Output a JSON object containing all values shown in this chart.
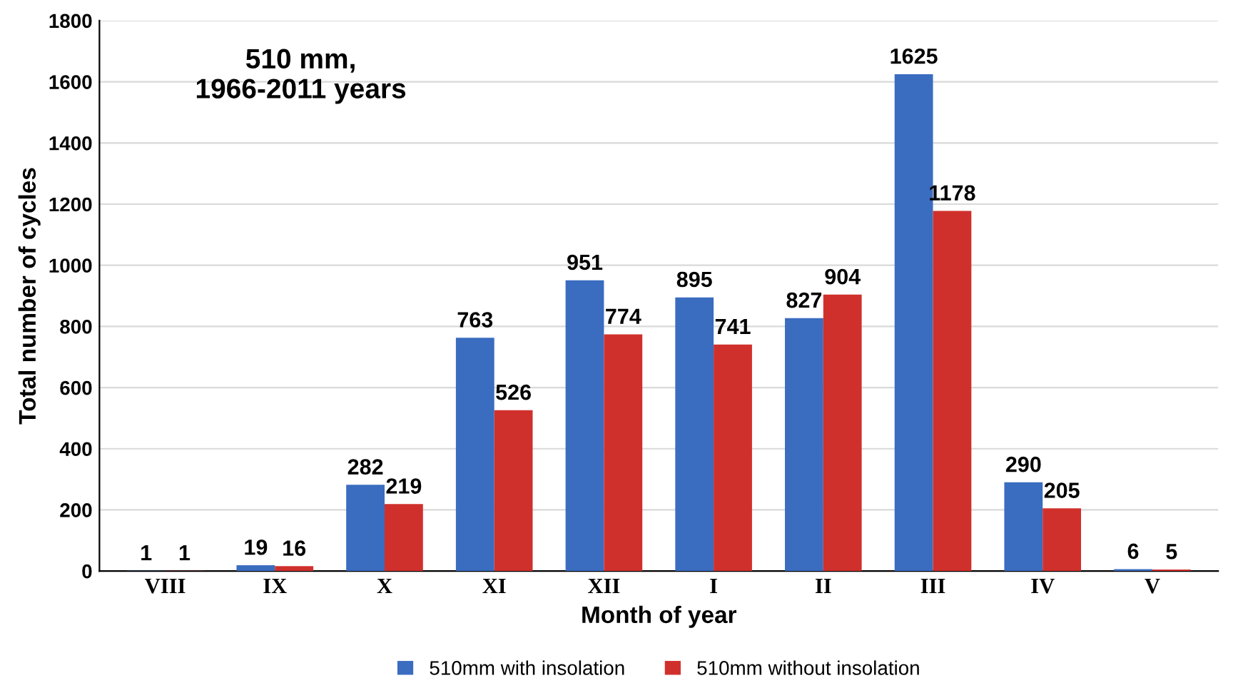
{
  "chart_data": {
    "type": "bar",
    "xlabel": "Month of year",
    "ylabel": "Total number of cycles",
    "annotations": [
      "510 mm,\n1966-2011 years"
    ],
    "categories": [
      "VIII",
      "IX",
      "X",
      "XI",
      "XII",
      "I",
      "II",
      "III",
      "IV",
      "V"
    ],
    "series": [
      {
        "name": "510mm with insolation",
        "color": "#3a6cc0",
        "values": [
          1,
          19,
          282,
          763,
          951,
          895,
          827,
          1625,
          290,
          6
        ]
      },
      {
        "name": "510mm without insolation",
        "color": "#d0302c",
        "values": [
          1,
          16,
          219,
          526,
          774,
          741,
          904,
          1178,
          205,
          5
        ]
      }
    ],
    "ylim": [
      0,
      1800
    ],
    "yticks": [
      0,
      200,
      400,
      600,
      800,
      1000,
      1200,
      1400,
      1600,
      1800
    ],
    "grid": "y",
    "legend": "bottom",
    "data_labels": true
  }
}
